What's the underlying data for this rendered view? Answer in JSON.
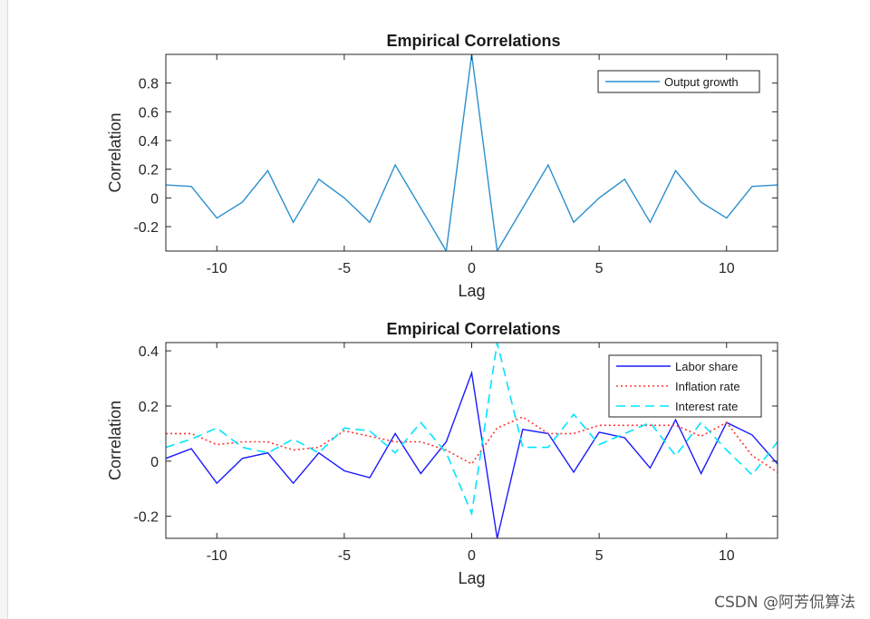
{
  "watermark": "CSDN @阿芳侃算法",
  "chart_data": [
    {
      "type": "line",
      "title": "Empirical Correlations",
      "xlabel": "Lag",
      "ylabel": "Correlation",
      "xlim": [
        -12,
        12
      ],
      "ylim": [
        -0.37,
        1.0
      ],
      "xticks": [
        -10,
        -5,
        0,
        5,
        10
      ],
      "yticks": [
        -0.2,
        0,
        0.2,
        0.4,
        0.6,
        0.8
      ],
      "x": [
        -12,
        -11,
        -10,
        -9,
        -8,
        -7,
        -6,
        -5,
        -4,
        -3,
        -2,
        -1,
        0,
        1,
        2,
        3,
        4,
        5,
        6,
        7,
        8,
        9,
        10,
        11,
        12
      ],
      "legend_position": "top-right",
      "series": [
        {
          "name": "Output growth",
          "color": "#2b8fcf",
          "style": "solid",
          "values": [
            0.09,
            0.08,
            -0.14,
            -0.03,
            0.19,
            -0.17,
            0.13,
            0.0,
            -0.17,
            0.23,
            -0.07,
            -0.37,
            1.0,
            -0.37,
            -0.07,
            0.23,
            -0.17,
            0.0,
            0.13,
            -0.17,
            0.19,
            -0.03,
            -0.14,
            0.08,
            0.09
          ]
        }
      ]
    },
    {
      "type": "line",
      "title": "Empirical Correlations",
      "xlabel": "Lag",
      "ylabel": "Correlation",
      "xlim": [
        -12,
        12
      ],
      "ylim": [
        -0.28,
        0.43
      ],
      "xticks": [
        -10,
        -5,
        0,
        5,
        10
      ],
      "yticks": [
        -0.2,
        0,
        0.2,
        0.4
      ],
      "x": [
        -12,
        -11,
        -10,
        -9,
        -8,
        -7,
        -6,
        -5,
        -4,
        -3,
        -2,
        -1,
        0,
        1,
        2,
        3,
        4,
        5,
        6,
        7,
        8,
        9,
        10,
        11,
        12
      ],
      "legend_position": "top-right",
      "series": [
        {
          "name": "Labor share",
          "color": "#1a1aff",
          "style": "solid",
          "values": [
            0.01,
            0.045,
            -0.08,
            0.01,
            0.03,
            -0.08,
            0.03,
            -0.035,
            -0.06,
            0.1,
            -0.045,
            0.07,
            0.32,
            -0.28,
            0.115,
            0.1,
            -0.04,
            0.105,
            0.085,
            -0.025,
            0.15,
            -0.045,
            0.14,
            0.095,
            -0.01
          ]
        },
        {
          "name": "Inflation rate",
          "color": "#ff3333",
          "style": "dotted",
          "values": [
            0.1,
            0.1,
            0.06,
            0.07,
            0.07,
            0.04,
            0.05,
            0.11,
            0.09,
            0.07,
            0.07,
            0.04,
            -0.01,
            0.12,
            0.16,
            0.1,
            0.1,
            0.13,
            0.13,
            0.13,
            0.13,
            0.09,
            0.14,
            0.02,
            -0.04
          ]
        },
        {
          "name": "Interest rate",
          "color": "#00e5ff",
          "style": "dashed",
          "values": [
            0.05,
            0.08,
            0.12,
            0.05,
            0.03,
            0.08,
            0.03,
            0.12,
            0.11,
            0.03,
            0.14,
            0.03,
            -0.19,
            0.43,
            0.05,
            0.05,
            0.17,
            0.06,
            0.1,
            0.14,
            0.02,
            0.14,
            0.04,
            -0.05,
            0.07
          ]
        }
      ]
    }
  ]
}
